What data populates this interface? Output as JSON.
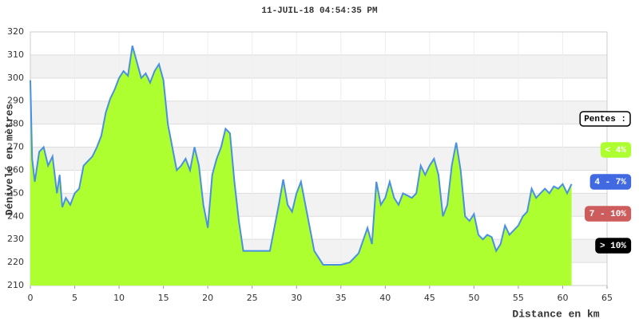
{
  "chart_data": {
    "type": "area",
    "title": "11-JUIL-18 04:54:35 PM",
    "y_label": "Dénivelé en mètres",
    "x_label": "Distance en km",
    "x": [
      0,
      0.2,
      0.5,
      1,
      1.5,
      2,
      2.5,
      3,
      3.3,
      3.6,
      4,
      4.5,
      5,
      5.5,
      6,
      7,
      7.5,
      8,
      8.5,
      9,
      9.5,
      10,
      10.5,
      11,
      11.5,
      12,
      12.5,
      13,
      13.5,
      14,
      14.5,
      15,
      15.5,
      16,
      16.5,
      17,
      17.5,
      18,
      18.5,
      19,
      19.5,
      20,
      20.5,
      21,
      21.5,
      22,
      22.5,
      23,
      23.5,
      24,
      25,
      26,
      27,
      27.5,
      28,
      28.5,
      29,
      29.5,
      30,
      30.5,
      31,
      31.5,
      32,
      32.5,
      33,
      34,
      35,
      36,
      37,
      38,
      38.5,
      39,
      39.5,
      40,
      40.5,
      41,
      41.5,
      42,
      43,
      43.5,
      44,
      44.5,
      45,
      45.5,
      46,
      46.5,
      47,
      47.5,
      48,
      48.5,
      49,
      49.5,
      50,
      50.5,
      51,
      51.5,
      52,
      52.5,
      53,
      53.5,
      54,
      54.5,
      55,
      55.5,
      56,
      56.5,
      57,
      57.5,
      58,
      58.5,
      59,
      59.5,
      60,
      60.5,
      61
    ],
    "values": [
      299,
      265,
      255,
      268,
      270,
      262,
      266,
      250,
      258,
      244,
      248,
      245,
      250,
      252,
      262,
      266,
      270,
      275,
      285,
      291,
      295,
      300,
      303,
      301,
      314,
      307,
      300,
      302,
      298,
      303,
      306,
      299,
      280,
      270,
      260,
      262,
      265,
      260,
      270,
      262,
      245,
      235,
      258,
      265,
      270,
      278,
      276,
      255,
      238,
      225,
      225,
      225,
      225,
      235,
      245,
      256,
      245,
      242,
      250,
      255,
      245,
      235,
      225,
      222,
      219,
      219,
      219,
      220,
      224,
      235,
      228,
      255,
      245,
      248,
      255,
      248,
      245,
      250,
      248,
      250,
      262,
      258,
      262,
      265,
      258,
      240,
      245,
      262,
      272,
      260,
      240,
      238,
      241,
      232,
      230,
      232,
      231,
      225,
      228,
      236,
      232,
      234,
      236,
      240,
      242,
      252,
      248,
      250,
      252,
      250,
      253,
      252,
      254,
      250,
      254
    ],
    "color": "#adff2f",
    "line_color": "#4a90e2",
    "xlim": [
      0,
      65
    ],
    "xticks": [
      0,
      5,
      10,
      15,
      20,
      25,
      30,
      35,
      40,
      45,
      50,
      55,
      60,
      65
    ],
    "ylim": [
      210,
      320
    ],
    "yticks": [
      210,
      220,
      230,
      240,
      250,
      260,
      270,
      280,
      290,
      300,
      310,
      320
    ],
    "grid": true,
    "legend": {
      "title": "Pentes :",
      "items": [
        {
          "label": "< 4%",
          "color": "#adff2f"
        },
        {
          "label": "4 - 7%",
          "color": "#4169e1"
        },
        {
          "label": "7 - 10%",
          "color": "#cd5c5c"
        },
        {
          "label": "> 10%",
          "color": "#000000"
        }
      ]
    }
  }
}
